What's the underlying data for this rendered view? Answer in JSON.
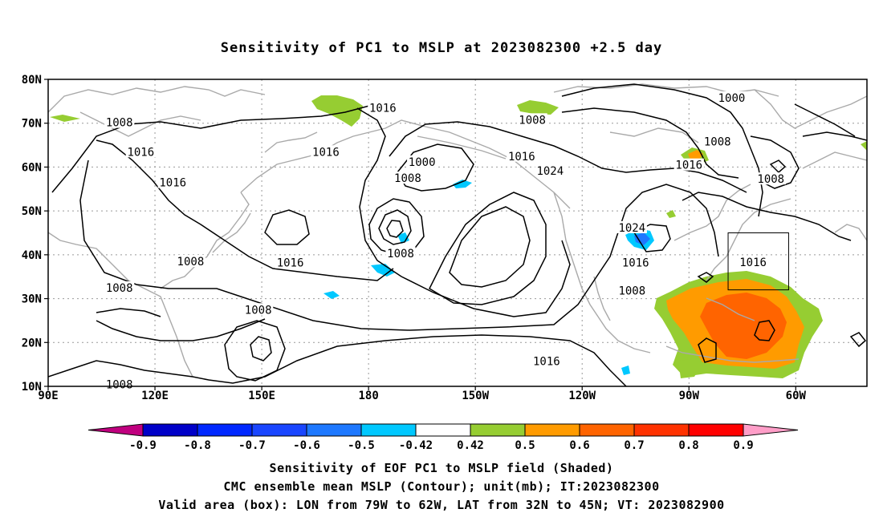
{
  "title": "Sensitivity of PC1 to MSLP at 2023082300 +2.5 day",
  "map": {
    "lat_labels": [
      "80N",
      "70N",
      "60N",
      "50N",
      "40N",
      "30N",
      "20N",
      "10N"
    ],
    "lon_labels": [
      "90E",
      "120E",
      "150E",
      "180",
      "150W",
      "120W",
      "90W",
      "60W"
    ],
    "contour_labels": [
      {
        "text": "1016",
        "lon": 184,
        "lat": 73.5
      },
      {
        "text": "1008",
        "lon": 110,
        "lat": 70.2
      },
      {
        "text": "1016",
        "lon": 116,
        "lat": 63.5
      },
      {
        "text": "1016",
        "lon": 168,
        "lat": 63.5
      },
      {
        "text": "1008",
        "lon": 226,
        "lat": 70.8
      },
      {
        "text": "1000",
        "lon": 282,
        "lat": 75.8
      },
      {
        "text": "1008",
        "lon": 278,
        "lat": 65.8
      },
      {
        "text": "1016",
        "lon": 270,
        "lat": 60.5
      },
      {
        "text": "1000",
        "lon": 195,
        "lat": 61.2
      },
      {
        "text": "1016",
        "lon": 223,
        "lat": 62.5
      },
      {
        "text": "1008",
        "lon": 191,
        "lat": 57.5
      },
      {
        "text": "1024",
        "lon": 231,
        "lat": 59.2
      },
      {
        "text": "1016",
        "lon": 125,
        "lat": 56.5
      },
      {
        "text": "1008",
        "lon": 293,
        "lat": 57.3
      },
      {
        "text": "1024",
        "lon": 254,
        "lat": 46.2
      },
      {
        "text": "1008",
        "lon": 130,
        "lat": 38.5
      },
      {
        "text": "1016",
        "lon": 158,
        "lat": 38.2
      },
      {
        "text": "1008",
        "lon": 189,
        "lat": 40.3
      },
      {
        "text": "1016",
        "lon": 255,
        "lat": 38.2
      },
      {
        "text": "1016",
        "lon": 288,
        "lat": 38.3
      },
      {
        "text": "1008",
        "lon": 110,
        "lat": 32.5
      },
      {
        "text": "1008",
        "lon": 254,
        "lat": 31.8
      },
      {
        "text": "1008",
        "lon": 149,
        "lat": 27.5
      },
      {
        "text": "1016",
        "lon": 230,
        "lat": 15.8
      },
      {
        "text": "1008",
        "lon": 110,
        "lat": 10.5
      }
    ],
    "valid_box": {
      "lon_min": 281,
      "lon_max": 298,
      "lat_min": 32,
      "lat_max": 45
    }
  },
  "colorbar": {
    "tick_labels": [
      "-0.9",
      "-0.8",
      "-0.7",
      "-0.6",
      "-0.5",
      "-0.42",
      "0.42",
      "0.5",
      "0.6",
      "0.7",
      "0.8",
      "0.9"
    ],
    "colors": [
      "#c0007f",
      "#0000c8",
      "#0028ff",
      "#1a46ff",
      "#1e78ff",
      "#00c8ff",
      "#ffffff",
      "#96cd32",
      "#ff9b00",
      "#ff6400",
      "#ff3200",
      "#ff0000",
      "#ff9ec8"
    ]
  },
  "captions": {
    "line1": "Sensitivity of EOF PC1 to MSLP field (Shaded)",
    "line2": "CMC ensemble mean MSLP (Contour); unit(mb); IT:2023082300",
    "line3": "Valid area (box): LON from 79W to 62W, LAT from 32N to 45N; VT: 2023082900"
  }
}
